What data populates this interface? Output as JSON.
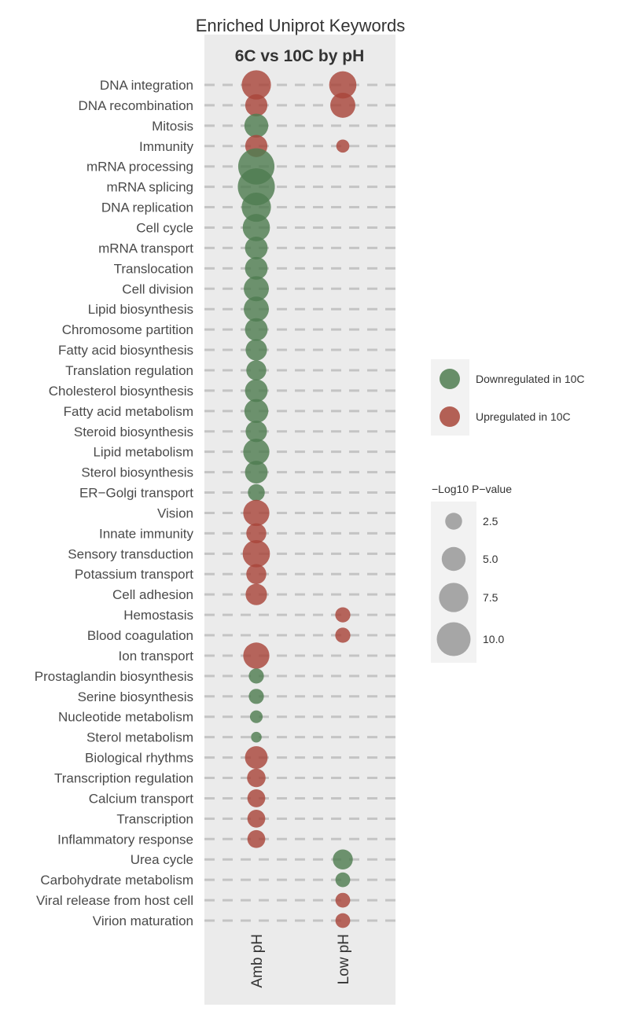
{
  "chart_data": {
    "type": "scatter",
    "title": "Enriched Uniprot Keywords",
    "facet_title": "6C vs 10C by pH",
    "xlabel": "",
    "ylabel": "",
    "x_categories": [
      "Amb pH",
      "Low pH"
    ],
    "y_categories": [
      "DNA integration",
      "DNA recombination",
      "Mitosis",
      "Immunity",
      "mRNA processing",
      "mRNA splicing",
      "DNA replication",
      "Cell cycle",
      "mRNA transport",
      "Translocation",
      "Cell division",
      "Lipid biosynthesis",
      "Chromosome partition",
      "Fatty acid biosynthesis",
      "Translation regulation",
      "Cholesterol biosynthesis",
      "Fatty acid metabolism",
      "Steroid biosynthesis",
      "Lipid metabolism",
      "Sterol biosynthesis",
      "ER−Golgi transport",
      "Vision",
      "Innate immunity",
      "Sensory transduction",
      "Potassium transport",
      "Cell adhesion",
      "Hemostasis",
      "Blood coagulation",
      "Ion transport",
      "Prostaglandin biosynthesis",
      "Serine biosynthesis",
      "Nucleotide metabolism",
      "Sterol metabolism",
      "Biological rhythms",
      "Transcription regulation",
      "Calcium transport",
      "Transcription",
      "Inflammatory response",
      "Urea cycle",
      "Carbohydrate metabolism",
      "Viral release from host cell",
      "Virion maturation"
    ],
    "points": [
      {
        "x": "Amb pH",
        "y": "DNA integration",
        "value": 7.5,
        "direction": "Upregulated in 10C"
      },
      {
        "x": "Amb pH",
        "y": "DNA recombination",
        "value": 4.3,
        "direction": "Upregulated in 10C"
      },
      {
        "x": "Amb pH",
        "y": "Mitosis",
        "value": 5.0,
        "direction": "Downregulated in 10C"
      },
      {
        "x": "Amb pH",
        "y": "Immunity",
        "value": 4.3,
        "direction": "Upregulated in 10C"
      },
      {
        "x": "Amb pH",
        "y": "mRNA processing",
        "value": 11.5,
        "direction": "Downregulated in 10C"
      },
      {
        "x": "Amb pH",
        "y": "mRNA splicing",
        "value": 12.0,
        "direction": "Downregulated in 10C"
      },
      {
        "x": "Amb pH",
        "y": "DNA replication",
        "value": 7.5,
        "direction": "Downregulated in 10C"
      },
      {
        "x": "Amb pH",
        "y": "Cell cycle",
        "value": 6.5,
        "direction": "Downregulated in 10C"
      },
      {
        "x": "Amb pH",
        "y": "mRNA transport",
        "value": 4.5,
        "direction": "Downregulated in 10C"
      },
      {
        "x": "Amb pH",
        "y": "Translocation",
        "value": 4.5,
        "direction": "Downregulated in 10C"
      },
      {
        "x": "Amb pH",
        "y": "Cell division",
        "value": 5.5,
        "direction": "Downregulated in 10C"
      },
      {
        "x": "Amb pH",
        "y": "Lipid biosynthesis",
        "value": 5.5,
        "direction": "Downregulated in 10C"
      },
      {
        "x": "Amb pH",
        "y": "Chromosome partition",
        "value": 4.5,
        "direction": "Downregulated in 10C"
      },
      {
        "x": "Amb pH",
        "y": "Fatty acid biosynthesis",
        "value": 4.0,
        "direction": "Downregulated in 10C"
      },
      {
        "x": "Amb pH",
        "y": "Translation regulation",
        "value": 3.5,
        "direction": "Downregulated in 10C"
      },
      {
        "x": "Amb pH",
        "y": "Cholesterol biosynthesis",
        "value": 4.5,
        "direction": "Downregulated in 10C"
      },
      {
        "x": "Amb pH",
        "y": "Fatty acid metabolism",
        "value": 5.0,
        "direction": "Downregulated in 10C"
      },
      {
        "x": "Amb pH",
        "y": "Steroid biosynthesis",
        "value": 4.0,
        "direction": "Downregulated in 10C"
      },
      {
        "x": "Amb pH",
        "y": "Lipid metabolism",
        "value": 6.0,
        "direction": "Downregulated in 10C"
      },
      {
        "x": "Amb pH",
        "y": "Sterol biosynthesis",
        "value": 4.5,
        "direction": "Downregulated in 10C"
      },
      {
        "x": "Amb pH",
        "y": "ER−Golgi transport",
        "value": 2.5,
        "direction": "Downregulated in 10C"
      },
      {
        "x": "Amb pH",
        "y": "Vision",
        "value": 6.0,
        "direction": "Upregulated in 10C"
      },
      {
        "x": "Amb pH",
        "y": "Innate immunity",
        "value": 3.5,
        "direction": "Upregulated in 10C"
      },
      {
        "x": "Amb pH",
        "y": "Sensory transduction",
        "value": 6.5,
        "direction": "Upregulated in 10C"
      },
      {
        "x": "Amb pH",
        "y": "Potassium transport",
        "value": 3.5,
        "direction": "Upregulated in 10C"
      },
      {
        "x": "Amb pH",
        "y": "Cell adhesion",
        "value": 4.0,
        "direction": "Upregulated in 10C"
      },
      {
        "x": "Low pH",
        "y": "Hemostasis",
        "value": 2.0,
        "direction": "Upregulated in 10C"
      },
      {
        "x": "Low pH",
        "y": "Blood coagulation",
        "value": 2.0,
        "direction": "Upregulated in 10C"
      },
      {
        "x": "Amb pH",
        "y": "Ion transport",
        "value": 6.0,
        "direction": "Upregulated in 10C"
      },
      {
        "x": "Amb pH",
        "y": "Prostaglandin biosynthesis",
        "value": 2.0,
        "direction": "Downregulated in 10C"
      },
      {
        "x": "Amb pH",
        "y": "Serine biosynthesis",
        "value": 2.0,
        "direction": "Downregulated in 10C"
      },
      {
        "x": "Amb pH",
        "y": "Nucleotide metabolism",
        "value": 1.4,
        "direction": "Downregulated in 10C"
      },
      {
        "x": "Amb pH",
        "y": "Sterol metabolism",
        "value": 1.0,
        "direction": "Downregulated in 10C"
      },
      {
        "x": "Amb pH",
        "y": "Biological rhythms",
        "value": 4.5,
        "direction": "Upregulated in 10C"
      },
      {
        "x": "Amb pH",
        "y": "Transcription regulation",
        "value": 3.0,
        "direction": "Upregulated in 10C"
      },
      {
        "x": "Amb pH",
        "y": "Calcium transport",
        "value": 2.8,
        "direction": "Upregulated in 10C"
      },
      {
        "x": "Amb pH",
        "y": "Transcription",
        "value": 2.8,
        "direction": "Upregulated in 10C"
      },
      {
        "x": "Amb pH",
        "y": "Inflammatory response",
        "value": 2.8,
        "direction": "Upregulated in 10C"
      },
      {
        "x": "Low pH",
        "y": "DNA integration",
        "value": 6.5,
        "direction": "Upregulated in 10C"
      },
      {
        "x": "Low pH",
        "y": "DNA recombination",
        "value": 5.5,
        "direction": "Upregulated in 10C"
      },
      {
        "x": "Low pH",
        "y": "Immunity",
        "value": 1.5,
        "direction": "Upregulated in 10C"
      },
      {
        "x": "Low pH",
        "y": "Urea cycle",
        "value": 3.5,
        "direction": "Downregulated in 10C"
      },
      {
        "x": "Low pH",
        "y": "Carbohydrate metabolism",
        "value": 1.9,
        "direction": "Downregulated in 10C"
      },
      {
        "x": "Low pH",
        "y": "Viral release from host cell",
        "value": 1.9,
        "direction": "Upregulated in 10C"
      },
      {
        "x": "Low pH",
        "y": "Virion maturation",
        "value": 1.9,
        "direction": "Upregulated in 10C"
      }
    ],
    "color_legend": [
      {
        "label": "Downregulated in 10C",
        "color": "#4f7d50"
      },
      {
        "label": "Upregulated in 10C",
        "color": "#a8463a"
      }
    ],
    "size_legend": {
      "title": "−Log10 P−value",
      "values": [
        2.5,
        5.0,
        7.5,
        10.0
      ],
      "labels": [
        "2.5",
        "5.0",
        "7.5",
        "10.0"
      ]
    },
    "value_range": [
      0,
      12
    ],
    "grid": true,
    "legend_position": "right",
    "panel_background": "#ebebeb"
  }
}
